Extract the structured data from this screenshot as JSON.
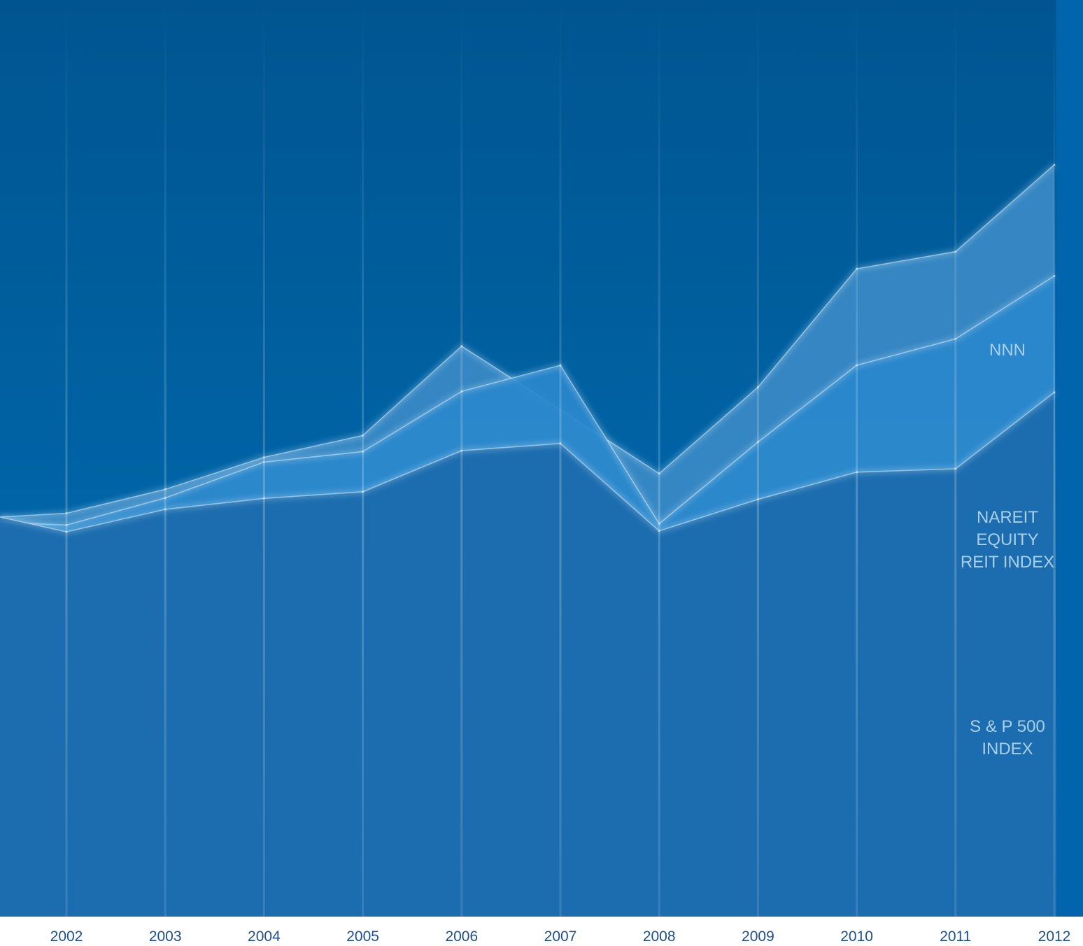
{
  "chart_data": {
    "type": "area",
    "categories": [
      "2002",
      "2003",
      "2004",
      "2005",
      "2006",
      "2007",
      "2008",
      "2009",
      "2010",
      "2011",
      "2012"
    ],
    "series": [
      {
        "name": "NNN",
        "label_lines": [
          "NNN"
        ],
        "start_value": 1.37,
        "values": [
          1.45,
          1.95,
          2.62,
          3.08,
          4.95,
          3.62,
          2.28,
          4.09,
          6.57,
          6.93,
          8.75
        ],
        "color": "#3a8ac6"
      },
      {
        "name": "NAREIT EQUITY REIT INDEX",
        "label_lines": [
          "NAREIT",
          "EQUITY",
          "REIT INDEX"
        ],
        "start_value": 1.26,
        "values": [
          1.2,
          1.77,
          2.52,
          2.74,
          4.0,
          4.55,
          1.23,
          2.94,
          4.55,
          5.1,
          6.42
        ],
        "color": "#2a88cc"
      },
      {
        "name": "S & P 500 INDEX",
        "label_lines": [
          "S & P 500",
          "INDEX"
        ],
        "start_value": 1.37,
        "values": [
          1.06,
          1.53,
          1.76,
          1.9,
          2.76,
          2.91,
          1.08,
          1.74,
          2.31,
          2.38,
          3.98
        ],
        "color": "#1b6aad"
      }
    ],
    "ylim": [
      -7,
      12.2
    ],
    "xlabel": "",
    "ylabel": "",
    "title": "",
    "grid": "vertical",
    "background": "#0060a8"
  }
}
